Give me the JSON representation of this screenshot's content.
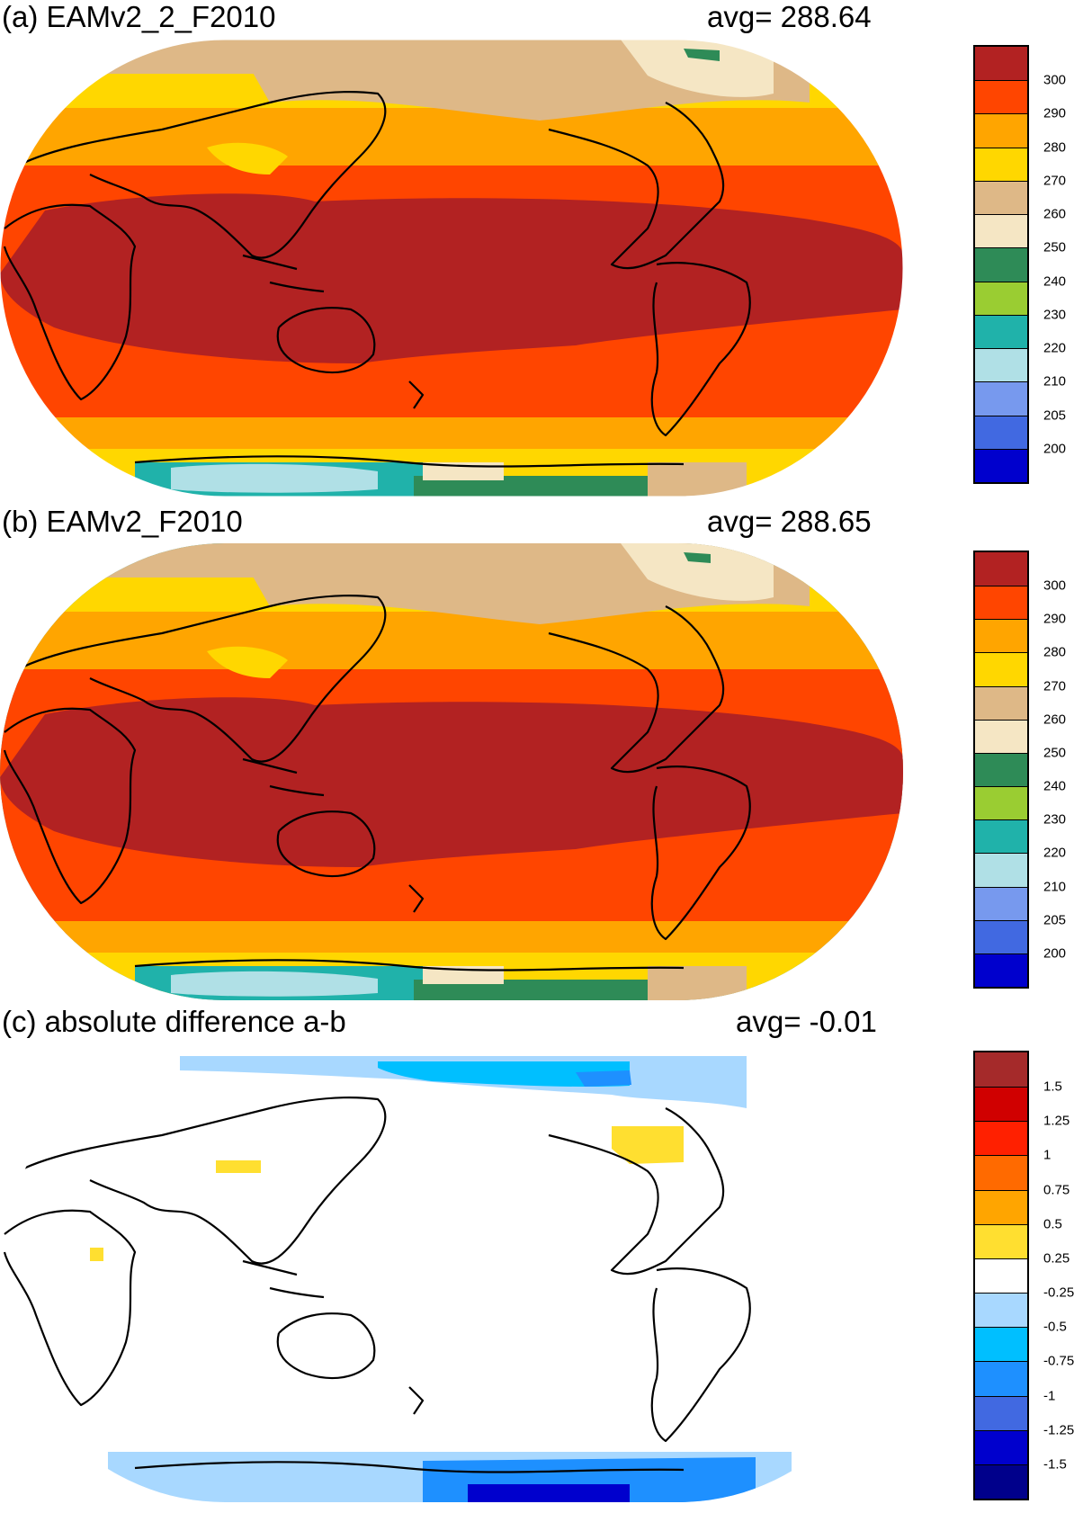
{
  "panels": [
    {
      "id": "a",
      "title": "(a) EAMv2_2_F2010",
      "avg_text": "avg=  288.64",
      "colorbar": {
        "labels": [
          "300",
          "290",
          "280",
          "270",
          "260",
          "250",
          "240",
          "230",
          "220",
          "210",
          "205",
          "200"
        ],
        "colors": [
          "#b22222",
          "#ff4500",
          "#ffa500",
          "#ffd700",
          "#deb887",
          "#f5e6c4",
          "#2e8b57",
          "#9acd32",
          "#20b2aa",
          "#b0e0e6",
          "#7799ee",
          "#4169e1",
          "#0000cd"
        ]
      }
    },
    {
      "id": "b",
      "title": "(b) EAMv2_F2010",
      "avg_text": "avg=  288.65",
      "colorbar": {
        "labels": [
          "300",
          "290",
          "280",
          "270",
          "260",
          "250",
          "240",
          "230",
          "220",
          "210",
          "205",
          "200"
        ],
        "colors": [
          "#b22222",
          "#ff4500",
          "#ffa500",
          "#ffd700",
          "#deb887",
          "#f5e6c4",
          "#2e8b57",
          "#9acd32",
          "#20b2aa",
          "#b0e0e6",
          "#7799ee",
          "#4169e1",
          "#0000cd"
        ]
      }
    },
    {
      "id": "c",
      "title": "(c) absolute difference a-b",
      "avg_text": "avg=   -0.01",
      "colorbar": {
        "labels": [
          "1.5",
          "1.25",
          "1",
          "0.75",
          "0.5",
          "0.25",
          "-0.25",
          "-0.5",
          "-0.75",
          "-1",
          "-1.25",
          "-1.5"
        ],
        "colors": [
          "#a52a2a",
          "#d00000",
          "#ff2000",
          "#ff6a00",
          "#ffa500",
          "#ffdf30",
          "#ffffff",
          "#a8d8ff",
          "#00bfff",
          "#1e90ff",
          "#4169e1",
          "#0000cd",
          "#00008b"
        ]
      }
    }
  ]
}
